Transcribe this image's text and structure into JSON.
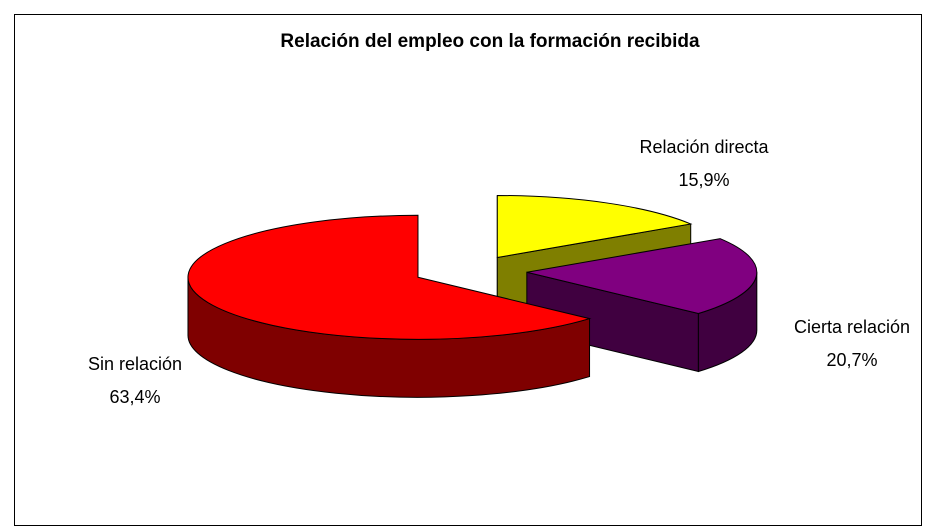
{
  "chart_data": {
    "type": "pie3d",
    "title": "Relación del empleo con la formación recibida",
    "categories": [
      "Relación directa",
      "Cierta relación",
      "Sin relación"
    ],
    "values": [
      15.9,
      20.7,
      63.4
    ],
    "value_labels": [
      "15,9%",
      "20,7%",
      "63,4%"
    ],
    "colors": [
      "#ffff00",
      "#800080",
      "#ff0000"
    ]
  }
}
